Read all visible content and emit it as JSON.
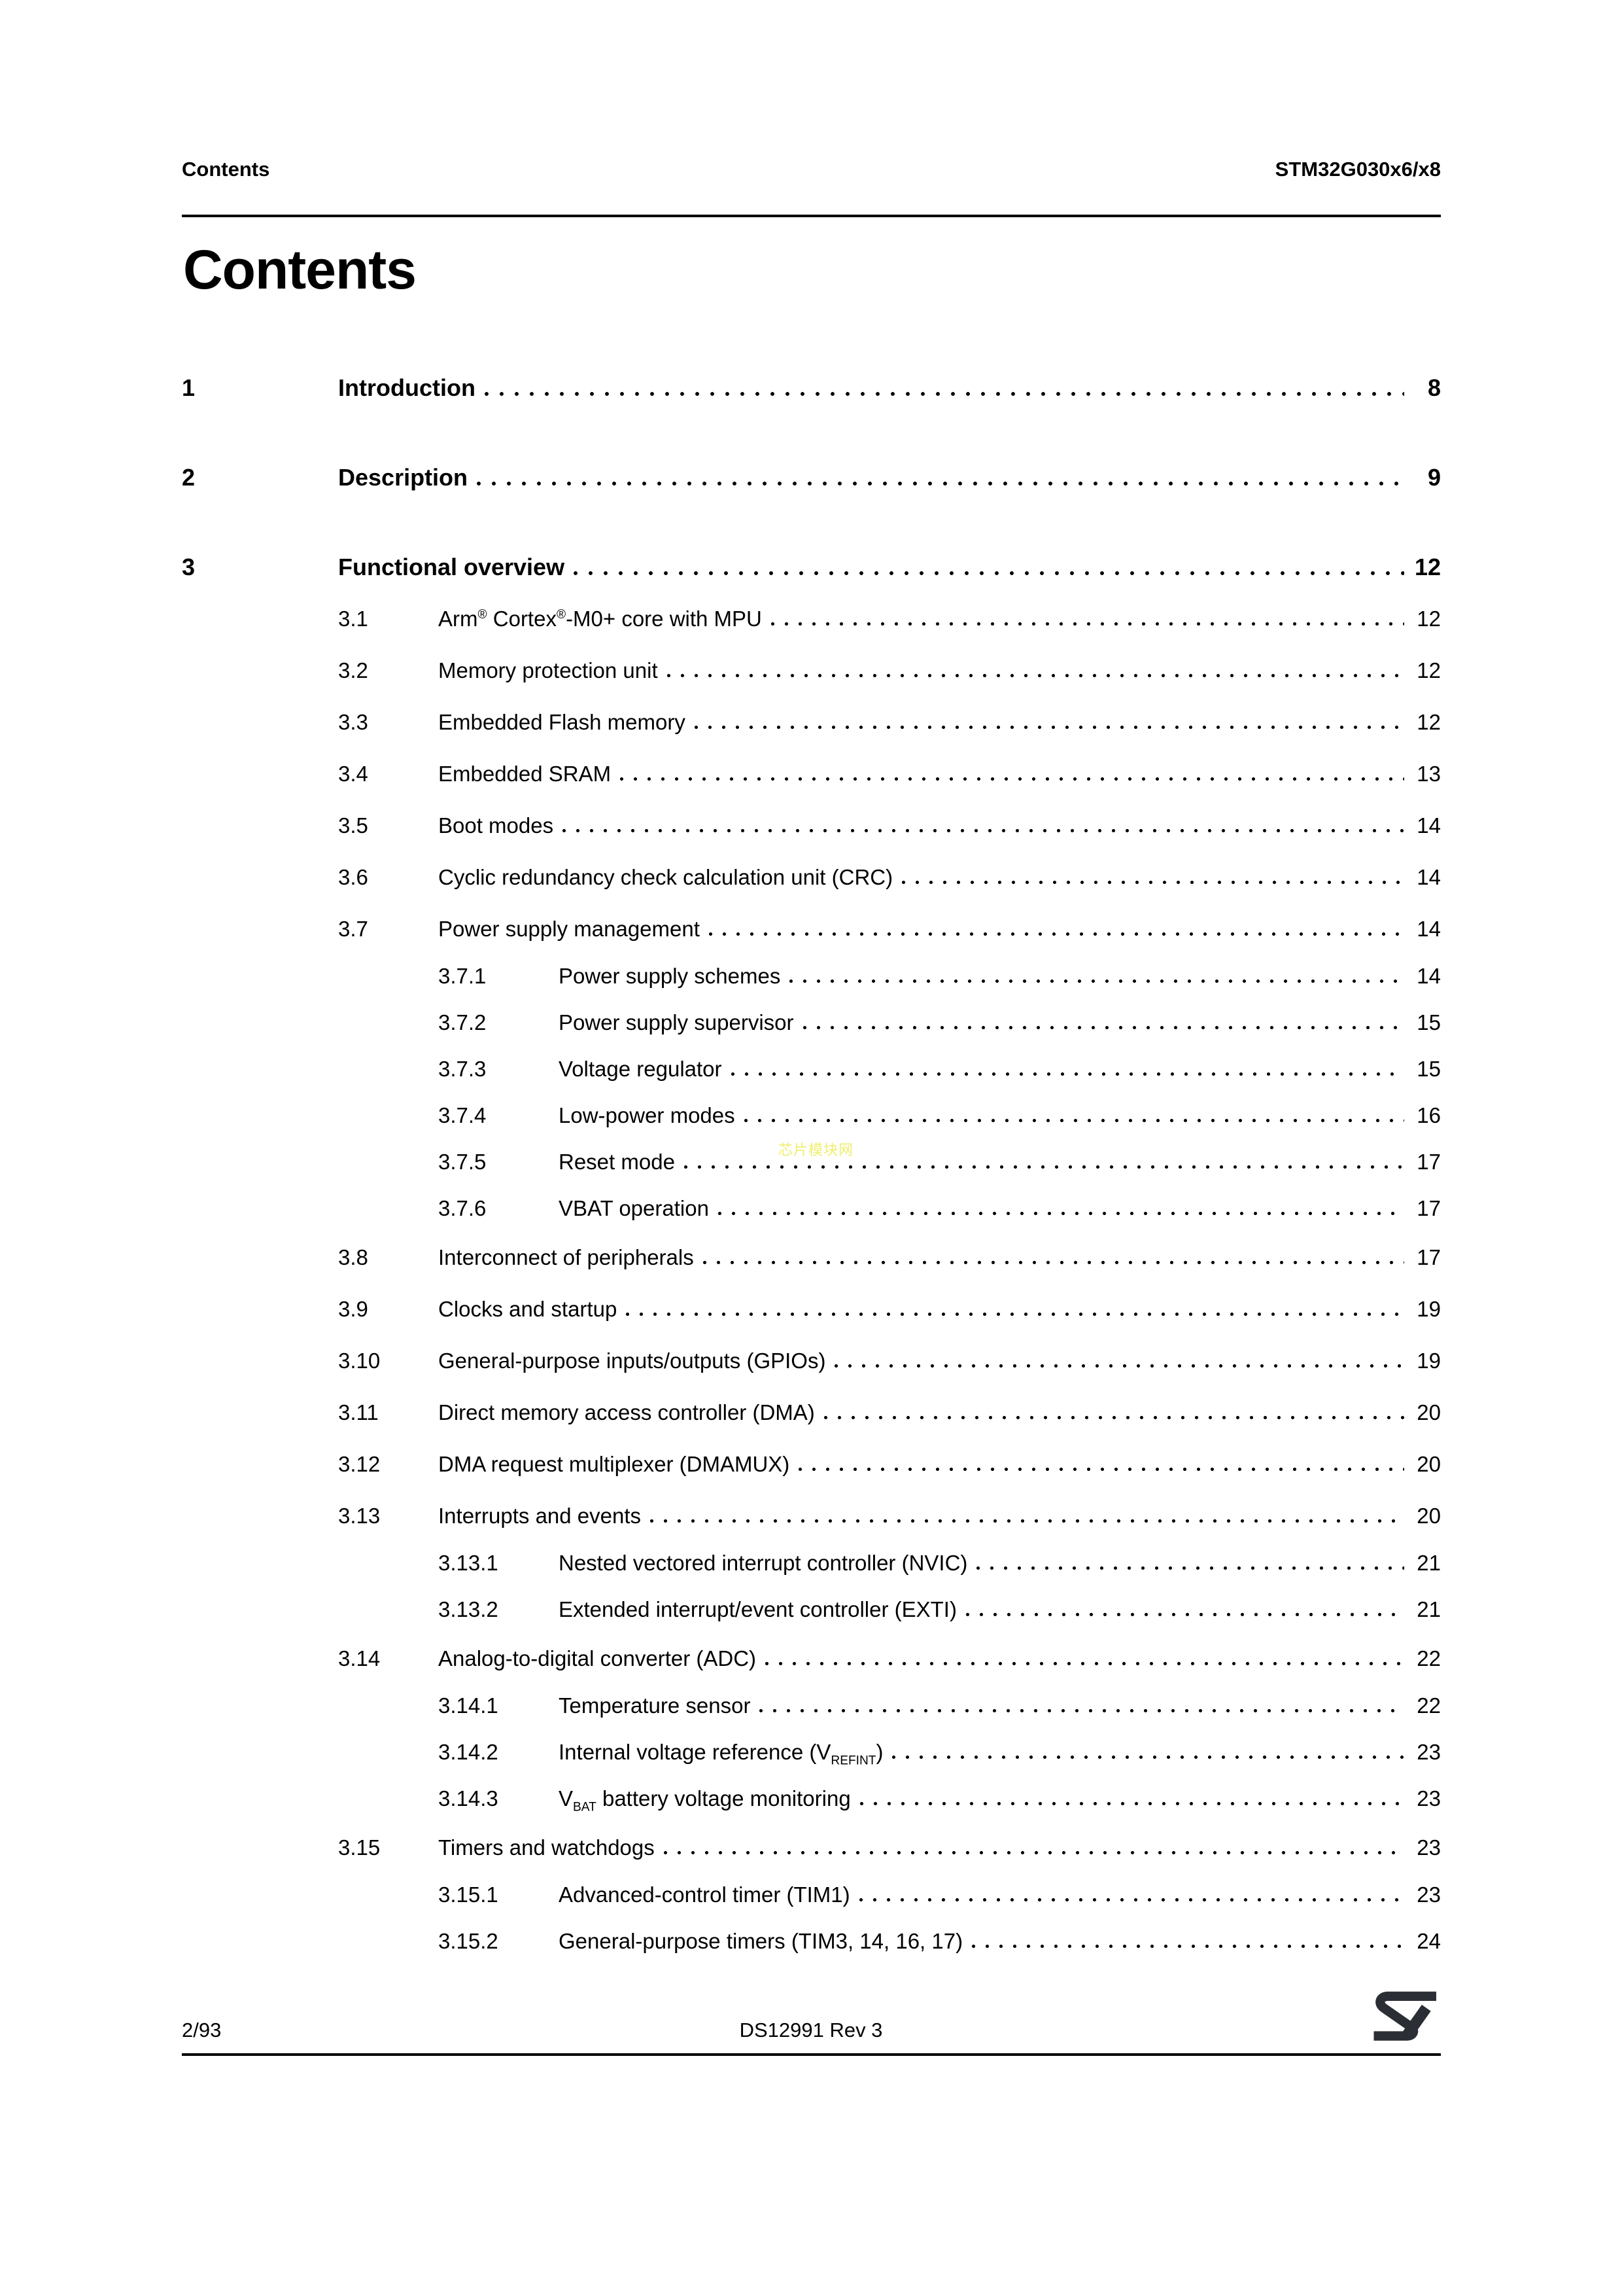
{
  "header": {
    "left": "Contents",
    "right": "STM32G030x6/x8"
  },
  "title": "Contents",
  "watermark": "芯片模块网",
  "footer": {
    "page_number": "2/93",
    "doc_ref": "DS12991 Rev 3",
    "logo": "st-logo"
  },
  "colors": {
    "text": "#000000",
    "rule": "#000000",
    "logo": "#2b2e34",
    "watermark": "#efef6e",
    "background": "#ffffff"
  },
  "toc": {
    "entries": [
      {
        "level": 1,
        "number": "1",
        "title": [
          {
            "t": "Introduction"
          }
        ],
        "page": "8"
      },
      {
        "level": 1,
        "number": "2",
        "title": [
          {
            "t": "Description"
          }
        ],
        "page": "9"
      },
      {
        "level": 1,
        "number": "3",
        "title": [
          {
            "t": "Functional overview"
          }
        ],
        "page": "12"
      },
      {
        "level": 2,
        "number": "3.1",
        "title": [
          {
            "t": "Arm"
          },
          {
            "t": "®",
            "s": "sup"
          },
          {
            "t": " Cortex"
          },
          {
            "t": "®",
            "s": "sup"
          },
          {
            "t": "-M0+ core with MPU"
          }
        ],
        "page": "12"
      },
      {
        "level": 2,
        "number": "3.2",
        "title": [
          {
            "t": "Memory protection unit"
          }
        ],
        "page": "12"
      },
      {
        "level": 2,
        "number": "3.3",
        "title": [
          {
            "t": "Embedded Flash memory"
          }
        ],
        "page": "12"
      },
      {
        "level": 2,
        "number": "3.4",
        "title": [
          {
            "t": "Embedded SRAM"
          }
        ],
        "page": "13"
      },
      {
        "level": 2,
        "number": "3.5",
        "title": [
          {
            "t": "Boot modes"
          }
        ],
        "page": "14"
      },
      {
        "level": 2,
        "number": "3.6",
        "title": [
          {
            "t": "Cyclic redundancy check calculation unit (CRC)"
          }
        ],
        "page": "14"
      },
      {
        "level": 2,
        "number": "3.7",
        "title": [
          {
            "t": "Power supply management"
          }
        ],
        "page": "14"
      },
      {
        "level": 3,
        "number": "3.7.1",
        "title": [
          {
            "t": "Power supply schemes"
          }
        ],
        "page": "14"
      },
      {
        "level": 3,
        "number": "3.7.2",
        "title": [
          {
            "t": "Power supply supervisor"
          }
        ],
        "page": "15"
      },
      {
        "level": 3,
        "number": "3.7.3",
        "title": [
          {
            "t": "Voltage regulator"
          }
        ],
        "page": "15"
      },
      {
        "level": 3,
        "number": "3.7.4",
        "title": [
          {
            "t": "Low-power modes"
          }
        ],
        "page": "16"
      },
      {
        "level": 3,
        "number": "3.7.5",
        "title": [
          {
            "t": "Reset mode"
          }
        ],
        "page": "17"
      },
      {
        "level": 3,
        "number": "3.7.6",
        "title": [
          {
            "t": "VBAT operation"
          }
        ],
        "page": "17"
      },
      {
        "level": 2,
        "number": "3.8",
        "title": [
          {
            "t": "Interconnect of peripherals"
          }
        ],
        "page": "17"
      },
      {
        "level": 2,
        "number": "3.9",
        "title": [
          {
            "t": "Clocks and startup"
          }
        ],
        "page": "19"
      },
      {
        "level": 2,
        "number": "3.10",
        "title": [
          {
            "t": "General-purpose inputs/outputs (GPIOs)"
          }
        ],
        "page": "19"
      },
      {
        "level": 2,
        "number": "3.11",
        "title": [
          {
            "t": "Direct memory access controller (DMA)"
          }
        ],
        "page": "20"
      },
      {
        "level": 2,
        "number": "3.12",
        "title": [
          {
            "t": "DMA request multiplexer (DMAMUX)"
          }
        ],
        "page": "20"
      },
      {
        "level": 2,
        "number": "3.13",
        "title": [
          {
            "t": "Interrupts and events"
          }
        ],
        "page": "20"
      },
      {
        "level": 3,
        "number": "3.13.1",
        "title": [
          {
            "t": "Nested vectored interrupt controller (NVIC)"
          }
        ],
        "page": "21"
      },
      {
        "level": 3,
        "number": "3.13.2",
        "title": [
          {
            "t": "Extended interrupt/event controller (EXTI)"
          }
        ],
        "page": "21"
      },
      {
        "level": 2,
        "number": "3.14",
        "title": [
          {
            "t": "Analog-to-digital converter (ADC)"
          }
        ],
        "page": "22"
      },
      {
        "level": 3,
        "number": "3.14.1",
        "title": [
          {
            "t": "Temperature sensor"
          }
        ],
        "page": "22"
      },
      {
        "level": 3,
        "number": "3.14.2",
        "title": [
          {
            "t": "Internal voltage reference (V"
          },
          {
            "t": "REFINT",
            "s": "sub"
          },
          {
            "t": ")"
          }
        ],
        "page": "23"
      },
      {
        "level": 3,
        "number": "3.14.3",
        "title": [
          {
            "t": "V"
          },
          {
            "t": "BAT",
            "s": "sub"
          },
          {
            "t": " battery voltage monitoring"
          }
        ],
        "page": "23"
      },
      {
        "level": 2,
        "number": "3.15",
        "title": [
          {
            "t": "Timers and watchdogs"
          }
        ],
        "page": "23"
      },
      {
        "level": 3,
        "number": "3.15.1",
        "title": [
          {
            "t": "Advanced-control timer (TIM1)"
          }
        ],
        "page": "23"
      },
      {
        "level": 3,
        "number": "3.15.2",
        "title": [
          {
            "t": "General-purpose timers (TIM3, 14, 16, 17)"
          }
        ],
        "page": "24"
      }
    ]
  }
}
